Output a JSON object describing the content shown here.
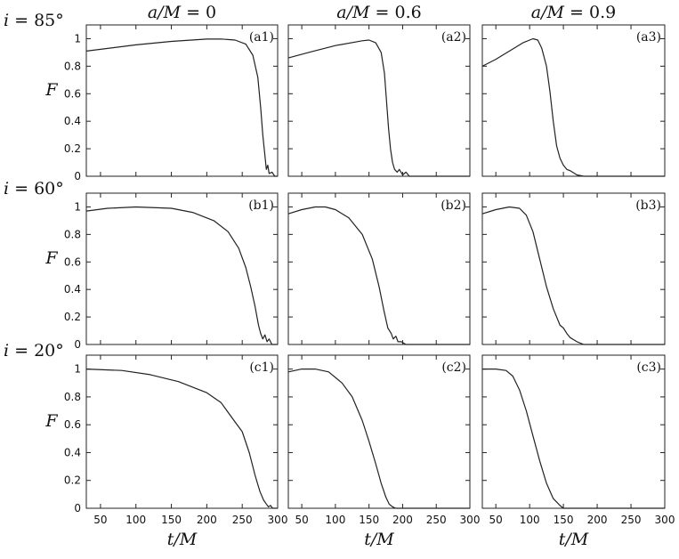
{
  "chart_data": {
    "type": "line",
    "column_titles": [
      "a/M = 0",
      "a/M = 0.6",
      "a/M = 0.9"
    ],
    "row_titles": [
      "i = 85°",
      "i = 60°",
      "i = 20°"
    ],
    "ylabel": "F",
    "xlabel": "t/M",
    "xlim": [
      30,
      300
    ],
    "ylim": [
      0,
      1.1
    ],
    "x_ticks": [
      "50",
      "100",
      "150",
      "200",
      "250",
      "300"
    ],
    "y_ticks": [
      "0",
      "0.2",
      "0.4",
      "0.6",
      "0.8",
      "1"
    ],
    "panels": [
      {
        "label": "(a1)",
        "row": 0,
        "col": 0,
        "points": [
          [
            30,
            0.91
          ],
          [
            100,
            0.955
          ],
          [
            150,
            0.98
          ],
          [
            200,
            0.997
          ],
          [
            220,
            0.998
          ],
          [
            240,
            0.99
          ],
          [
            255,
            0.96
          ],
          [
            265,
            0.88
          ],
          [
            272,
            0.72
          ],
          [
            276,
            0.5
          ],
          [
            279,
            0.3
          ],
          [
            282,
            0.15
          ],
          [
            284,
            0.05
          ],
          [
            286,
            0.08
          ],
          [
            288,
            0.02
          ],
          [
            292,
            0.03
          ],
          [
            296,
            0.0
          ],
          [
            300,
            0.0
          ]
        ]
      },
      {
        "label": "(a2)",
        "row": 0,
        "col": 1,
        "points": [
          [
            30,
            0.86
          ],
          [
            60,
            0.9
          ],
          [
            100,
            0.95
          ],
          [
            140,
            0.985
          ],
          [
            150,
            0.99
          ],
          [
            160,
            0.97
          ],
          [
            168,
            0.9
          ],
          [
            173,
            0.75
          ],
          [
            176,
            0.55
          ],
          [
            179,
            0.35
          ],
          [
            182,
            0.2
          ],
          [
            185,
            0.1
          ],
          [
            188,
            0.05
          ],
          [
            192,
            0.03
          ],
          [
            195,
            0.05
          ],
          [
            200,
            0.01
          ],
          [
            205,
            0.03
          ],
          [
            210,
            0.0
          ],
          [
            300,
            0.0
          ]
        ]
      },
      {
        "label": "(a3)",
        "row": 0,
        "col": 2,
        "points": [
          [
            30,
            0.8
          ],
          [
            50,
            0.85
          ],
          [
            70,
            0.91
          ],
          [
            90,
            0.97
          ],
          [
            105,
            1.0
          ],
          [
            112,
            0.99
          ],
          [
            118,
            0.93
          ],
          [
            125,
            0.8
          ],
          [
            130,
            0.62
          ],
          [
            135,
            0.4
          ],
          [
            140,
            0.22
          ],
          [
            145,
            0.13
          ],
          [
            150,
            0.08
          ],
          [
            155,
            0.05
          ],
          [
            160,
            0.04
          ],
          [
            170,
            0.01
          ],
          [
            180,
            0.0
          ],
          [
            300,
            0.0
          ]
        ]
      },
      {
        "label": "(b1)",
        "row": 1,
        "col": 0,
        "points": [
          [
            30,
            0.97
          ],
          [
            60,
            0.99
          ],
          [
            100,
            1.0
          ],
          [
            150,
            0.99
          ],
          [
            180,
            0.96
          ],
          [
            210,
            0.9
          ],
          [
            230,
            0.82
          ],
          [
            245,
            0.7
          ],
          [
            255,
            0.56
          ],
          [
            262,
            0.42
          ],
          [
            268,
            0.28
          ],
          [
            273,
            0.14
          ],
          [
            276,
            0.08
          ],
          [
            279,
            0.04
          ],
          [
            282,
            0.07
          ],
          [
            285,
            0.02
          ],
          [
            288,
            0.04
          ],
          [
            292,
            0.0
          ],
          [
            300,
            0.0
          ]
        ]
      },
      {
        "label": "(b2)",
        "row": 1,
        "col": 1,
        "points": [
          [
            30,
            0.95
          ],
          [
            50,
            0.98
          ],
          [
            70,
            1.0
          ],
          [
            85,
            1.0
          ],
          [
            100,
            0.98
          ],
          [
            120,
            0.92
          ],
          [
            140,
            0.8
          ],
          [
            155,
            0.62
          ],
          [
            165,
            0.42
          ],
          [
            172,
            0.25
          ],
          [
            178,
            0.12
          ],
          [
            183,
            0.08
          ],
          [
            186,
            0.04
          ],
          [
            190,
            0.06
          ],
          [
            193,
            0.02
          ],
          [
            198,
            0.02
          ],
          [
            205,
            0.0
          ],
          [
            300,
            0.0
          ]
        ]
      },
      {
        "label": "(b3)",
        "row": 1,
        "col": 2,
        "points": [
          [
            30,
            0.95
          ],
          [
            50,
            0.98
          ],
          [
            70,
            1.0
          ],
          [
            85,
            0.99
          ],
          [
            95,
            0.94
          ],
          [
            105,
            0.82
          ],
          [
            115,
            0.62
          ],
          [
            125,
            0.42
          ],
          [
            135,
            0.26
          ],
          [
            145,
            0.14
          ],
          [
            150,
            0.12
          ],
          [
            155,
            0.08
          ],
          [
            160,
            0.05
          ],
          [
            170,
            0.02
          ],
          [
            180,
            0.0
          ],
          [
            300,
            0.0
          ]
        ]
      },
      {
        "label": "(c1)",
        "row": 2,
        "col": 0,
        "points": [
          [
            30,
            1.0
          ],
          [
            80,
            0.99
          ],
          [
            120,
            0.96
          ],
          [
            160,
            0.91
          ],
          [
            200,
            0.83
          ],
          [
            220,
            0.76
          ],
          [
            240,
            0.62
          ],
          [
            250,
            0.55
          ],
          [
            260,
            0.4
          ],
          [
            268,
            0.24
          ],
          [
            275,
            0.12
          ],
          [
            280,
            0.06
          ],
          [
            284,
            0.03
          ],
          [
            287,
            0.01
          ],
          [
            290,
            0.02
          ],
          [
            293,
            0.0
          ],
          [
            300,
            0.0
          ]
        ]
      },
      {
        "label": "(c2)",
        "row": 2,
        "col": 1,
        "points": [
          [
            30,
            0.98
          ],
          [
            50,
            1.0
          ],
          [
            70,
            1.0
          ],
          [
            90,
            0.98
          ],
          [
            110,
            0.9
          ],
          [
            125,
            0.8
          ],
          [
            140,
            0.63
          ],
          [
            150,
            0.48
          ],
          [
            160,
            0.32
          ],
          [
            168,
            0.18
          ],
          [
            175,
            0.08
          ],
          [
            180,
            0.03
          ],
          [
            185,
            0.01
          ],
          [
            190,
            0.0
          ],
          [
            300,
            0.0
          ]
        ]
      },
      {
        "label": "(c3)",
        "row": 2,
        "col": 2,
        "points": [
          [
            30,
            1.0
          ],
          [
            50,
            1.0
          ],
          [
            65,
            0.99
          ],
          [
            75,
            0.95
          ],
          [
            85,
            0.85
          ],
          [
            95,
            0.7
          ],
          [
            105,
            0.52
          ],
          [
            115,
            0.34
          ],
          [
            125,
            0.18
          ],
          [
            135,
            0.07
          ],
          [
            145,
            0.02
          ],
          [
            150,
            0.0
          ],
          [
            300,
            0.0
          ]
        ]
      }
    ]
  }
}
